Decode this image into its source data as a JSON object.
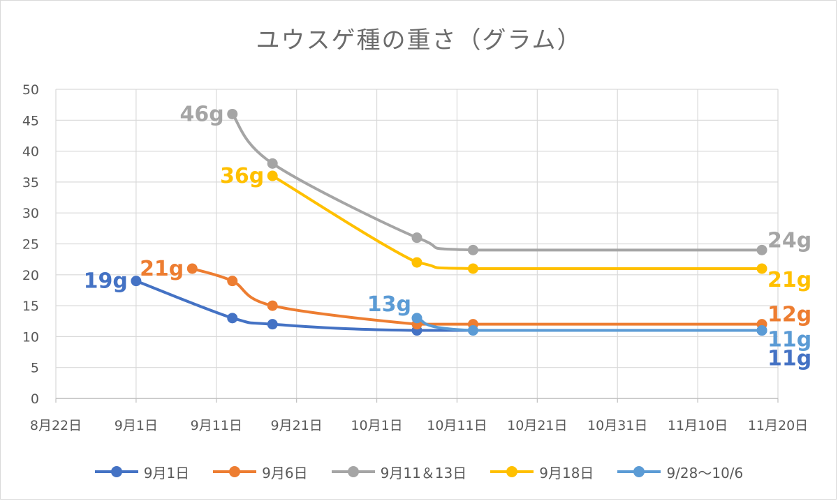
{
  "chart_data": {
    "type": "line",
    "title": "ユウスゲ種の重さ（グラム）",
    "x_axis": {
      "type": "date",
      "range": [
        "2021-08-22",
        "2021-11-20"
      ],
      "tick_labels": [
        "8月22日",
        "9月1日",
        "9月11日",
        "9月21日",
        "10月1日",
        "10月11日",
        "10月21日",
        "10月31日",
        "11月10日",
        "11月20日"
      ]
    },
    "y_axis": {
      "range": [
        0,
        50
      ],
      "tick_labels": [
        "0",
        "5",
        "10",
        "15",
        "20",
        "25",
        "30",
        "35",
        "40",
        "45",
        "50"
      ]
    },
    "grid": true,
    "legend_position": "bottom",
    "series": [
      {
        "name": "9月1日",
        "color": "#4472c4",
        "points": [
          {
            "x": "2021-09-01",
            "y": 19
          },
          {
            "x": "2021-09-13",
            "y": 13
          },
          {
            "x": "2021-09-18",
            "y": 12
          },
          {
            "x": "2021-10-06",
            "y": 11
          },
          {
            "x": "2021-11-18",
            "y": 11
          }
        ],
        "labels": [
          {
            "point": 0,
            "text": "19g",
            "side": "left"
          },
          {
            "point": 4,
            "text": "11g",
            "side": "right-below"
          }
        ]
      },
      {
        "name": "9月6日",
        "color": "#ed7d31",
        "points": [
          {
            "x": "2021-09-08",
            "y": 21
          },
          {
            "x": "2021-09-13",
            "y": 19
          },
          {
            "x": "2021-09-18",
            "y": 15
          },
          {
            "x": "2021-10-06",
            "y": 12
          },
          {
            "x": "2021-10-13",
            "y": 12
          },
          {
            "x": "2021-11-18",
            "y": 12
          }
        ],
        "labels": [
          {
            "point": 0,
            "text": "21g",
            "side": "left"
          },
          {
            "point": 5,
            "text": "12g",
            "side": "right-above"
          }
        ]
      },
      {
        "name": "9月11＆13日",
        "color": "#a5a5a5",
        "points": [
          {
            "x": "2021-09-13",
            "y": 46
          },
          {
            "x": "2021-09-18",
            "y": 38
          },
          {
            "x": "2021-10-06",
            "y": 26
          },
          {
            "x": "2021-10-13",
            "y": 24
          },
          {
            "x": "2021-11-18",
            "y": 24
          }
        ],
        "labels": [
          {
            "point": 0,
            "text": "46g",
            "side": "left"
          },
          {
            "point": 4,
            "text": "24g",
            "side": "right-above"
          }
        ]
      },
      {
        "name": "9月18日",
        "color": "#ffc000",
        "points": [
          {
            "x": "2021-09-18",
            "y": 36
          },
          {
            "x": "2021-10-06",
            "y": 22
          },
          {
            "x": "2021-10-13",
            "y": 21
          },
          {
            "x": "2021-11-18",
            "y": 21
          }
        ],
        "labels": [
          {
            "point": 0,
            "text": "36g",
            "side": "left"
          },
          {
            "point": 3,
            "text": "21g",
            "side": "right-below"
          }
        ]
      },
      {
        "name": "9/28〜10/6",
        "color": "#5b9bd5",
        "points": [
          {
            "x": "2021-10-06",
            "y": 13
          },
          {
            "x": "2021-10-13",
            "y": 11
          },
          {
            "x": "2021-11-18",
            "y": 11
          }
        ],
        "labels": [
          {
            "point": 0,
            "text": "13g",
            "side": "left-above"
          },
          {
            "point": 2,
            "text": "11g",
            "side": "right-below-near"
          }
        ]
      }
    ]
  }
}
